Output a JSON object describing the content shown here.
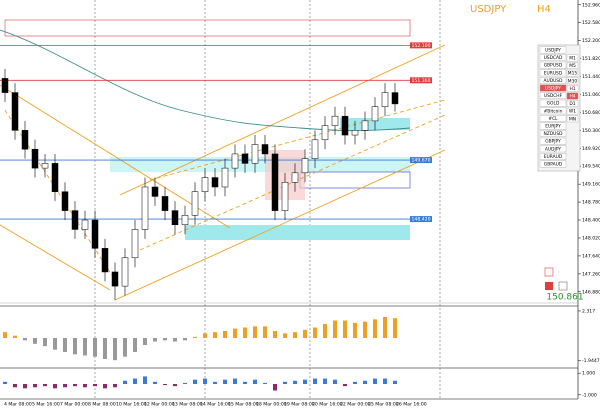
{
  "chart_data": {
    "type": "candlestick",
    "title": "USDJPY",
    "timeframe": "H4",
    "last_price": "150.861",
    "open": [
      151.4,
      151.1,
      150.3,
      149.9,
      149.5,
      149.6,
      149.0,
      148.6,
      148.2,
      148.4,
      147.8,
      147.3,
      147.0,
      147.6,
      148.2,
      149.1,
      148.9,
      148.6,
      148.3,
      148.5,
      149.0,
      149.3,
      149.1,
      149.5,
      149.8,
      149.6,
      150.0,
      149.8,
      148.6,
      149.2,
      149.4,
      149.7,
      150.1,
      150.4,
      150.6,
      150.2,
      150.3,
      150.5,
      150.8,
      151.1
    ],
    "high": [
      151.6,
      151.3,
      150.5,
      150.1,
      149.8,
      149.8,
      149.2,
      148.8,
      148.6,
      148.6,
      148.0,
      147.5,
      147.8,
      148.4,
      149.3,
      149.3,
      149.1,
      148.8,
      148.7,
      149.2,
      149.5,
      149.5,
      149.7,
      150.0,
      150.0,
      150.2,
      150.2,
      150.0,
      149.4,
      149.6,
      149.9,
      150.3,
      150.6,
      150.8,
      150.8,
      150.5,
      150.7,
      151.0,
      151.3,
      151.3
    ],
    "low": [
      150.9,
      150.1,
      149.7,
      149.3,
      149.3,
      148.8,
      148.4,
      148.0,
      148.0,
      147.6,
      147.1,
      146.7,
      146.8,
      147.4,
      148.0,
      148.7,
      148.4,
      148.1,
      148.1,
      148.3,
      148.8,
      148.9,
      148.9,
      149.3,
      149.4,
      149.4,
      149.6,
      148.4,
      148.4,
      149.0,
      149.2,
      149.5,
      149.9,
      150.2,
      150.0,
      150.0,
      150.1,
      150.3,
      150.6,
      150.7
    ],
    "close": [
      151.1,
      150.3,
      149.9,
      149.5,
      149.6,
      149.0,
      148.6,
      148.2,
      148.4,
      147.8,
      147.3,
      147.0,
      147.6,
      148.2,
      149.1,
      148.9,
      148.6,
      148.3,
      148.5,
      149.0,
      149.3,
      149.1,
      149.5,
      149.8,
      149.6,
      150.0,
      149.8,
      148.6,
      149.2,
      149.4,
      149.7,
      150.1,
      150.4,
      150.6,
      150.2,
      150.3,
      150.5,
      150.8,
      151.1,
      150.86
    ],
    "osc1": [
      0.5,
      0.2,
      -0.2,
      -0.5,
      -0.7,
      -1.0,
      -1.2,
      -1.4,
      -1.5,
      -1.6,
      -1.8,
      -1.9,
      -1.6,
      -1.2,
      -0.6,
      -0.3,
      -0.2,
      -0.3,
      -0.2,
      0.1,
      0.4,
      0.5,
      0.6,
      0.8,
      0.9,
      1.0,
      1.0,
      0.6,
      0.4,
      0.5,
      0.7,
      0.9,
      1.2,
      1.5,
      1.5,
      1.3,
      1.4,
      1.6,
      1.8,
      1.7
    ],
    "osc2": [
      0.2,
      -0.3,
      -0.4,
      -0.3,
      -0.2,
      -0.4,
      -0.3,
      -0.2,
      -0.3,
      -0.2,
      -0.4,
      -0.3,
      0.3,
      0.5,
      0.7,
      0.2,
      -0.1,
      -0.2,
      0.1,
      0.4,
      0.5,
      0.2,
      0.4,
      0.5,
      0.2,
      0.4,
      0.1,
      -0.6,
      0.2,
      0.3,
      0.4,
      0.5,
      0.5,
      0.4,
      -0.2,
      0.2,
      0.3,
      0.5,
      0.5,
      0.3
    ],
    "ylim": [
      146.6,
      153.04
    ],
    "yticks": [
      {
        "value": 152.96,
        "label": "152.960"
      },
      {
        "value": 152.58,
        "label": "152.580"
      },
      {
        "value": 152.2,
        "label": "152.200"
      },
      {
        "value": 151.82,
        "label": "151.820"
      },
      {
        "value": 151.44,
        "label": "151.440"
      },
      {
        "value": 151.06,
        "label": "151.060"
      },
      {
        "value": 150.68,
        "label": "150.680"
      },
      {
        "value": 150.3,
        "label": "150.300"
      },
      {
        "value": 149.92,
        "label": "149.920"
      },
      {
        "value": 149.54,
        "label": "149.540"
      },
      {
        "value": 149.16,
        "label": "149.160"
      },
      {
        "value": 148.78,
        "label": "148.780"
      },
      {
        "value": 148.4,
        "label": "148.400"
      },
      {
        "value": 148.02,
        "label": "148.020"
      },
      {
        "value": 147.64,
        "label": "147.640"
      },
      {
        "value": 147.26,
        "label": "147.260"
      },
      {
        "value": 146.88,
        "label": "146.880"
      }
    ],
    "osc1_ylim": [
      -2.4,
      2.4
    ],
    "osc1_yticks": [
      {
        "value": 2.317,
        "label": "2.317"
      },
      {
        "value": -1.9447,
        "label": "-1.9447"
      }
    ],
    "osc2_ylim": [
      -1.2,
      1.2
    ],
    "osc2_yticks": [
      {
        "value": 1,
        "label": "1.000"
      },
      {
        "value": -1,
        "label": "-1.000"
      }
    ],
    "levels": [
      {
        "value": 152.1,
        "label": "152.100",
        "color": "#e23b3b"
      },
      {
        "value": 151.36,
        "label": "151.360",
        "color": "#e23b3b"
      },
      {
        "value": 149.67,
        "label": "149.670",
        "color": "#3a7bd5"
      },
      {
        "value": 148.42,
        "label": "148.420",
        "color": "#3a7bd5"
      }
    ],
    "x_labels": [
      "4 Mar 08:00",
      "5 Mar 16:00",
      "7 Mar 00:00",
      "8 Mar 08:00",
      "10 Mar 16:00",
      "12 Mar 00:00",
      "13 Mar 08:00",
      "14 Mar 16:00",
      "15 Mar 08:00",
      "18 Mar 00:00",
      "19 Mar 08:00",
      "20 Mar 16:00",
      "22 Mar 00:00",
      "25 Mar 08:00",
      "26 Mar 16:00"
    ],
    "symbols": [
      "USDJPY",
      "USDCAD",
      "GBPUSD",
      "EURUSD",
      "AUDUSD",
      "USDJPY",
      "USDCHF",
      "GOLD",
      "#Bitcoin",
      "#CL",
      "EURJPY",
      "NZDUSD",
      "GBPJPY",
      "AUDJPY",
      "EURAUD",
      "GBPAUD"
    ],
    "timeframes": [
      "M1",
      "M5",
      "M15",
      "M30",
      "H1",
      "H4",
      "D1",
      "W1",
      "MN"
    ]
  }
}
